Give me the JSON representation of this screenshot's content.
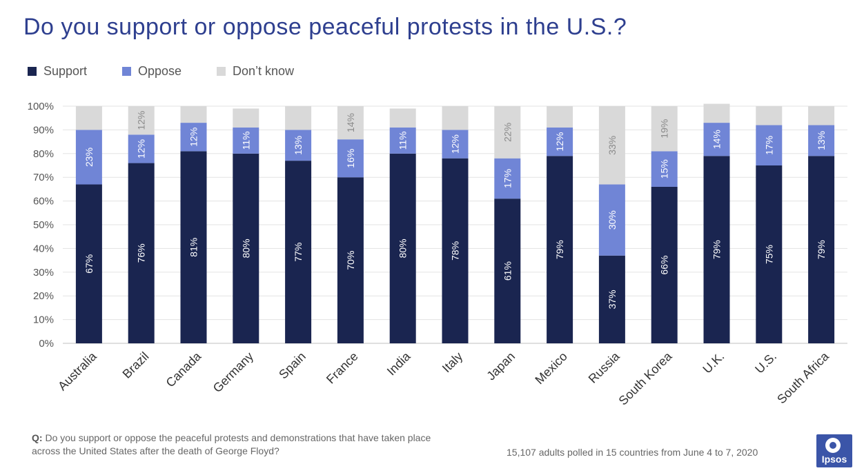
{
  "title": "Do you support or oppose peaceful protests in the U.S.?",
  "legend": [
    {
      "label": "Support",
      "color": "#1a2550"
    },
    {
      "label": "Oppose",
      "color": "#7085d6"
    },
    {
      "label": "Don’t know",
      "color": "#d9d9d9"
    }
  ],
  "footer": {
    "question_label": "Q:",
    "question_text": "Do you support or oppose the peaceful protests and demonstrations that have taken place across the United States after the death of George Floyd?",
    "note": "15,107 adults polled in 15 countries from June 4 to 7, 2020",
    "logo_text": "Ipsos"
  },
  "chart_data": {
    "type": "bar",
    "stacked": true,
    "title": "Do you support or oppose peaceful protests in the U.S.?",
    "xlabel": "",
    "ylabel": "",
    "ylim": [
      0,
      100
    ],
    "y_ticks": [
      "0%",
      "10%",
      "20%",
      "30%",
      "40%",
      "50%",
      "60%",
      "70%",
      "80%",
      "90%",
      "100%"
    ],
    "grid": true,
    "legend_position": "top-left",
    "categories": [
      "Australia",
      "Brazil",
      "Canada",
      "Germany",
      "Spain",
      "France",
      "India",
      "Italy",
      "Japan",
      "Mexico",
      "Russia",
      "South Korea",
      "U.K.",
      "U.S.",
      "South Africa"
    ],
    "series": [
      {
        "name": "Support",
        "color": "#1a2550",
        "values": [
          67,
          76,
          81,
          80,
          77,
          70,
          80,
          78,
          61,
          79,
          37,
          66,
          79,
          75,
          79
        ],
        "labels": [
          "67%",
          "76%",
          "81%",
          "80%",
          "77%",
          "70%",
          "80%",
          "78%",
          "61%",
          "79%",
          "37%",
          "66%",
          "79%",
          "75%",
          "79%"
        ]
      },
      {
        "name": "Oppose",
        "color": "#7085d6",
        "values": [
          23,
          12,
          12,
          11,
          13,
          16,
          11,
          12,
          17,
          12,
          30,
          15,
          14,
          17,
          13
        ],
        "labels": [
          "23%",
          "12%",
          "12%",
          "11%",
          "13%",
          "16%",
          "11%",
          "12%",
          "17%",
          "12%",
          "30%",
          "15%",
          "14%",
          "17%",
          "13%"
        ]
      },
      {
        "name": "Don’t know",
        "color": "#d9d9d9",
        "values": [
          10,
          12,
          7,
          8,
          10,
          14,
          8,
          10,
          22,
          9,
          33,
          19,
          8,
          8,
          8
        ],
        "labels": [
          "",
          "12%",
          "",
          "",
          "",
          "14%",
          "",
          "",
          "22%",
          "",
          "33%",
          "19%",
          "",
          "",
          ""
        ]
      }
    ]
  }
}
